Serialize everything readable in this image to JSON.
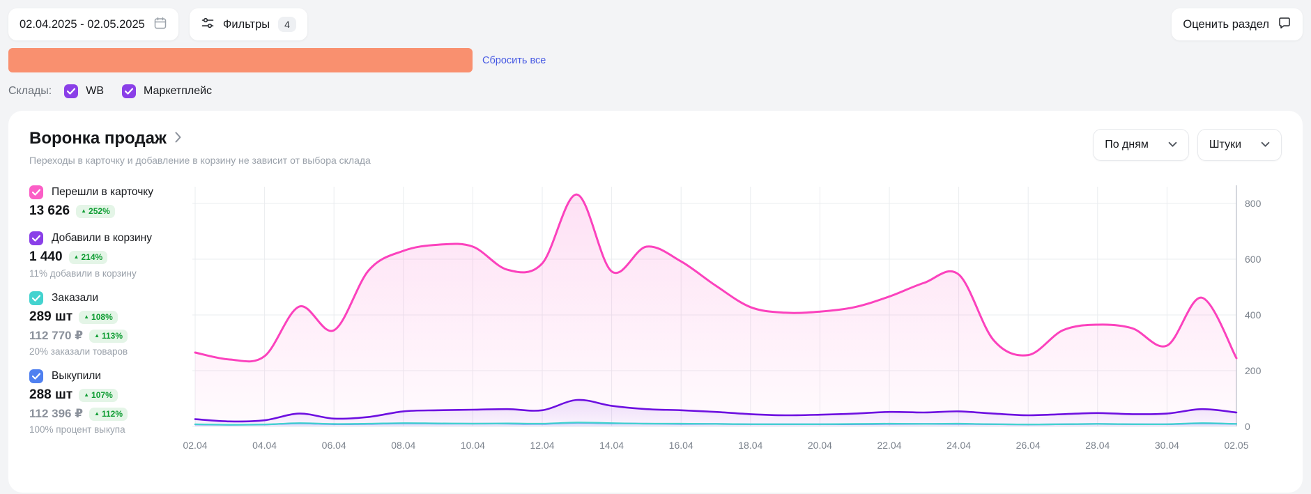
{
  "topbar": {
    "date_range": "02.04.2025 - 02.05.2025",
    "filters_label": "Фильтры",
    "filters_count": "4",
    "rate_label": "Оценить раздел",
    "reset_all": "Сбросить все"
  },
  "colors": {
    "filter_highlight": "#f9906f",
    "link": "#4659e3",
    "badge_green_bg": "#e4f5e7",
    "badge_green_text": "#0f9d33"
  },
  "warehouses": {
    "label": "Склады:",
    "options": [
      {
        "label": "WB",
        "checked": true
      },
      {
        "label": "Маркетплейс",
        "checked": true
      }
    ]
  },
  "funnel": {
    "title": "Воронка продаж",
    "subtitle": "Переходы в карточку и добавление в корзину не зависит от выбора склада",
    "group_by": "По дням",
    "units": "Штуки"
  },
  "metrics": [
    {
      "label": "Перешли в карточку",
      "value": "13 626",
      "badge": "252%"
    },
    {
      "label": "Добавили в корзину",
      "value": "1 440",
      "badge": "214%",
      "note": "11% добавили в корзину"
    },
    {
      "label": "Заказали",
      "value": "289 шт",
      "badge": "108%",
      "value2": "112 770 ₽",
      "badge2": "113%",
      "note": "20% заказали товаров"
    },
    {
      "label": "Выкупили",
      "value": "288 шт",
      "badge": "107%",
      "value2": "112 396 ₽",
      "badge2": "112%",
      "note": "100% процент выкупа"
    }
  ],
  "chart_data": {
    "type": "line",
    "x": [
      "02.04",
      "03.04",
      "04.04",
      "05.04",
      "06.04",
      "07.04",
      "08.04",
      "09.04",
      "10.04",
      "11.04",
      "12.04",
      "13.04",
      "14.04",
      "15.04",
      "16.04",
      "17.04",
      "18.04",
      "19.04",
      "20.04",
      "21.04",
      "22.04",
      "23.04",
      "24.04",
      "25.04",
      "26.04",
      "27.04",
      "28.04",
      "29.04",
      "30.04",
      "01.05",
      "02.05"
    ],
    "x_tick_labels": [
      "02.04",
      "04.04",
      "06.04",
      "08.04",
      "10.04",
      "12.04",
      "14.04",
      "16.04",
      "18.04",
      "20.04",
      "22.04",
      "24.04",
      "26.04",
      "28.04",
      "30.04",
      "02.05"
    ],
    "ylim": [
      0,
      860
    ],
    "yticks": [
      0,
      200,
      400,
      600,
      800
    ],
    "grid": true,
    "legend_position": "left",
    "series": [
      {
        "name": "Перешли в карточку",
        "color": "#fb42bd",
        "values": [
          265,
          240,
          252,
          430,
          345,
          560,
          630,
          652,
          645,
          562,
          585,
          832,
          556,
          645,
          592,
          505,
          428,
          408,
          412,
          428,
          466,
          515,
          545,
          310,
          256,
          345,
          365,
          352,
          290,
          462,
          245
        ]
      },
      {
        "name": "Добавили в корзину",
        "color": "#6d0fe0",
        "values": [
          26,
          18,
          22,
          46,
          28,
          34,
          54,
          58,
          60,
          62,
          58,
          95,
          74,
          62,
          58,
          52,
          44,
          40,
          42,
          46,
          52,
          50,
          54,
          46,
          40,
          44,
          48,
          44,
          46,
          62,
          50
        ]
      },
      {
        "name": "Заказали",
        "color": "#43d3cf",
        "values": [
          8,
          6,
          7,
          12,
          9,
          10,
          12,
          11,
          10,
          11,
          10,
          14,
          12,
          10,
          10,
          9,
          8,
          8,
          8,
          9,
          10,
          9,
          10,
          8,
          7,
          8,
          9,
          8,
          8,
          12,
          9
        ]
      },
      {
        "name": "Выкупили",
        "color": "#4f80f0",
        "values": [
          7,
          6,
          7,
          11,
          8,
          9,
          11,
          10,
          10,
          10,
          9,
          13,
          11,
          10,
          9,
          9,
          8,
          8,
          8,
          8,
          9,
          9,
          9,
          8,
          7,
          8,
          9,
          8,
          8,
          11,
          9
        ]
      }
    ]
  }
}
